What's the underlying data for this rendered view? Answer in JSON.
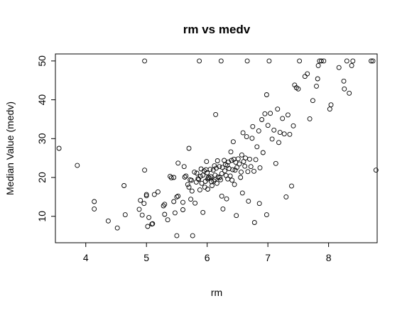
{
  "chart_data": {
    "type": "scatter",
    "title": "rm vs medv",
    "xlabel": "rm",
    "ylabel": "Median Value (medv)",
    "xlim": [
      3.5,
      8.8
    ],
    "ylim": [
      3.2,
      51.8
    ],
    "xticks": [
      "4",
      "5",
      "6",
      "7",
      "8"
    ],
    "yticks": [
      "10",
      "20",
      "30",
      "40",
      "50"
    ],
    "grid": false,
    "legend": "none",
    "marker": "open-circle",
    "color": "#000000",
    "points": [
      [
        3.56,
        27.5
      ],
      [
        3.86,
        23.1
      ],
      [
        4.14,
        13.8
      ],
      [
        4.14,
        11.9
      ],
      [
        4.37,
        8.8
      ],
      [
        4.52,
        7.0
      ],
      [
        4.63,
        17.9
      ],
      [
        4.65,
        10.4
      ],
      [
        4.88,
        11.8
      ],
      [
        4.9,
        14.1
      ],
      [
        4.93,
        10.3
      ],
      [
        4.96,
        13.3
      ],
      [
        4.97,
        50.0
      ],
      [
        4.97,
        21.9
      ],
      [
        5.0,
        15.6
      ],
      [
        5.0,
        15.3
      ],
      [
        5.02,
        7.4
      ],
      [
        5.04,
        9.7
      ],
      [
        5.09,
        8.0
      ],
      [
        5.1,
        8.1
      ],
      [
        5.13,
        15.6
      ],
      [
        5.19,
        16.3
      ],
      [
        5.28,
        12.7
      ],
      [
        5.3,
        13.1
      ],
      [
        5.3,
        10.5
      ],
      [
        5.35,
        9.1
      ],
      [
        5.39,
        20.3
      ],
      [
        5.41,
        19.9
      ],
      [
        5.45,
        13.8
      ],
      [
        5.45,
        20.0
      ],
      [
        5.47,
        10.9
      ],
      [
        5.5,
        5.0
      ],
      [
        5.5,
        15.0
      ],
      [
        5.52,
        23.7
      ],
      [
        5.52,
        15.2
      ],
      [
        5.6,
        11.7
      ],
      [
        5.6,
        13.6
      ],
      [
        5.62,
        22.8
      ],
      [
        5.63,
        20.1
      ],
      [
        5.65,
        20.4
      ],
      [
        5.68,
        18.2
      ],
      [
        5.7,
        17.5
      ],
      [
        5.7,
        27.5
      ],
      [
        5.72,
        19.4
      ],
      [
        5.73,
        14.4
      ],
      [
        5.74,
        19.3
      ],
      [
        5.75,
        16.5
      ],
      [
        5.76,
        5.0
      ],
      [
        5.79,
        21.4
      ],
      [
        5.8,
        13.4
      ],
      [
        5.82,
        18.8
      ],
      [
        5.83,
        21.1
      ],
      [
        5.85,
        19.7
      ],
      [
        5.86,
        19.5
      ],
      [
        5.87,
        50.0
      ],
      [
        5.88,
        16.8
      ],
      [
        5.89,
        20.3
      ],
      [
        5.9,
        22.2
      ],
      [
        5.91,
        18.5
      ],
      [
        5.93,
        20.6
      ],
      [
        5.93,
        11.0
      ],
      [
        5.95,
        21.7
      ],
      [
        5.96,
        17.5
      ],
      [
        5.97,
        19.0
      ],
      [
        5.98,
        22.0
      ],
      [
        5.99,
        24.1
      ],
      [
        6.0,
        21.2
      ],
      [
        6.01,
        19.6
      ],
      [
        6.01,
        17.0
      ],
      [
        6.02,
        20.0
      ],
      [
        6.04,
        19.8
      ],
      [
        6.05,
        22.1
      ],
      [
        6.06,
        20.2
      ],
      [
        6.07,
        18.9
      ],
      [
        6.08,
        17.9
      ],
      [
        6.1,
        21.9
      ],
      [
        6.11,
        19.1
      ],
      [
        6.12,
        23.0
      ],
      [
        6.13,
        20.6
      ],
      [
        6.13,
        19.5
      ],
      [
        6.14,
        36.2
      ],
      [
        6.15,
        22.4
      ],
      [
        6.16,
        18.5
      ],
      [
        6.17,
        24.3
      ],
      [
        6.18,
        20.1
      ],
      [
        6.2,
        22.8
      ],
      [
        6.21,
        20.0
      ],
      [
        6.22,
        19.4
      ],
      [
        6.23,
        50.0
      ],
      [
        6.24,
        21.0
      ],
      [
        6.24,
        15.2
      ],
      [
        6.25,
        22.6
      ],
      [
        6.26,
        11.9
      ],
      [
        6.28,
        24.4
      ],
      [
        6.29,
        21.7
      ],
      [
        6.3,
        23.3
      ],
      [
        6.31,
        20.5
      ],
      [
        6.32,
        14.5
      ],
      [
        6.33,
        23.1
      ],
      [
        6.34,
        19.6
      ],
      [
        6.35,
        24.0
      ],
      [
        6.36,
        22.3
      ],
      [
        6.38,
        20.4
      ],
      [
        6.39,
        26.6
      ],
      [
        6.4,
        24.4
      ],
      [
        6.41,
        19.3
      ],
      [
        6.42,
        22.0
      ],
      [
        6.43,
        29.2
      ],
      [
        6.44,
        24.7
      ],
      [
        6.45,
        18.2
      ],
      [
        6.46,
        21.9
      ],
      [
        6.47,
        23.9
      ],
      [
        6.48,
        10.2
      ],
      [
        6.49,
        22.6
      ],
      [
        6.51,
        24.8
      ],
      [
        6.53,
        23.5
      ],
      [
        6.55,
        20.0
      ],
      [
        6.56,
        21.4
      ],
      [
        6.57,
        25.8
      ],
      [
        6.58,
        16.0
      ],
      [
        6.59,
        31.5
      ],
      [
        6.6,
        24.1
      ],
      [
        6.62,
        22.9
      ],
      [
        6.63,
        25.0
      ],
      [
        6.65,
        30.5
      ],
      [
        6.66,
        50.0
      ],
      [
        6.67,
        21.5
      ],
      [
        6.68,
        13.9
      ],
      [
        6.7,
        24.7
      ],
      [
        6.72,
        22.8
      ],
      [
        6.74,
        30.1
      ],
      [
        6.75,
        33.1
      ],
      [
        6.77,
        21.6
      ],
      [
        6.78,
        8.4
      ],
      [
        6.8,
        24.6
      ],
      [
        6.82,
        27.9
      ],
      [
        6.85,
        32.0
      ],
      [
        6.86,
        13.3
      ],
      [
        6.87,
        22.5
      ],
      [
        6.9,
        34.9
      ],
      [
        6.92,
        26.4
      ],
      [
        6.95,
        36.4
      ],
      [
        6.98,
        41.3
      ],
      [
        6.98,
        10.4
      ],
      [
        7.0,
        33.4
      ],
      [
        7.02,
        50.0
      ],
      [
        7.04,
        36.5
      ],
      [
        7.07,
        29.9
      ],
      [
        7.1,
        32.2
      ],
      [
        7.13,
        23.6
      ],
      [
        7.16,
        37.6
      ],
      [
        7.18,
        29.0
      ],
      [
        7.2,
        31.6
      ],
      [
        7.24,
        35.2
      ],
      [
        7.27,
        31.2
      ],
      [
        7.3,
        15.0
      ],
      [
        7.33,
        36.1
      ],
      [
        7.36,
        31.1
      ],
      [
        7.39,
        17.8
      ],
      [
        7.42,
        33.3
      ],
      [
        7.44,
        43.8
      ],
      [
        7.47,
        43.1
      ],
      [
        7.5,
        42.8
      ],
      [
        7.52,
        50.0
      ],
      [
        7.61,
        46.0
      ],
      [
        7.65,
        46.7
      ],
      [
        7.69,
        35.1
      ],
      [
        7.74,
        39.8
      ],
      [
        7.8,
        43.5
      ],
      [
        7.82,
        45.4
      ],
      [
        7.83,
        48.8
      ],
      [
        7.85,
        50.0
      ],
      [
        7.88,
        50.0
      ],
      [
        7.92,
        50.0
      ],
      [
        8.02,
        37.6
      ],
      [
        8.04,
        38.7
      ],
      [
        8.17,
        48.3
      ],
      [
        8.25,
        44.8
      ],
      [
        8.26,
        42.8
      ],
      [
        8.3,
        50.0
      ],
      [
        8.34,
        41.7
      ],
      [
        8.38,
        48.8
      ],
      [
        8.4,
        50.0
      ],
      [
        8.7,
        50.0
      ],
      [
        8.73,
        50.0
      ],
      [
        8.78,
        21.9
      ]
    ]
  }
}
